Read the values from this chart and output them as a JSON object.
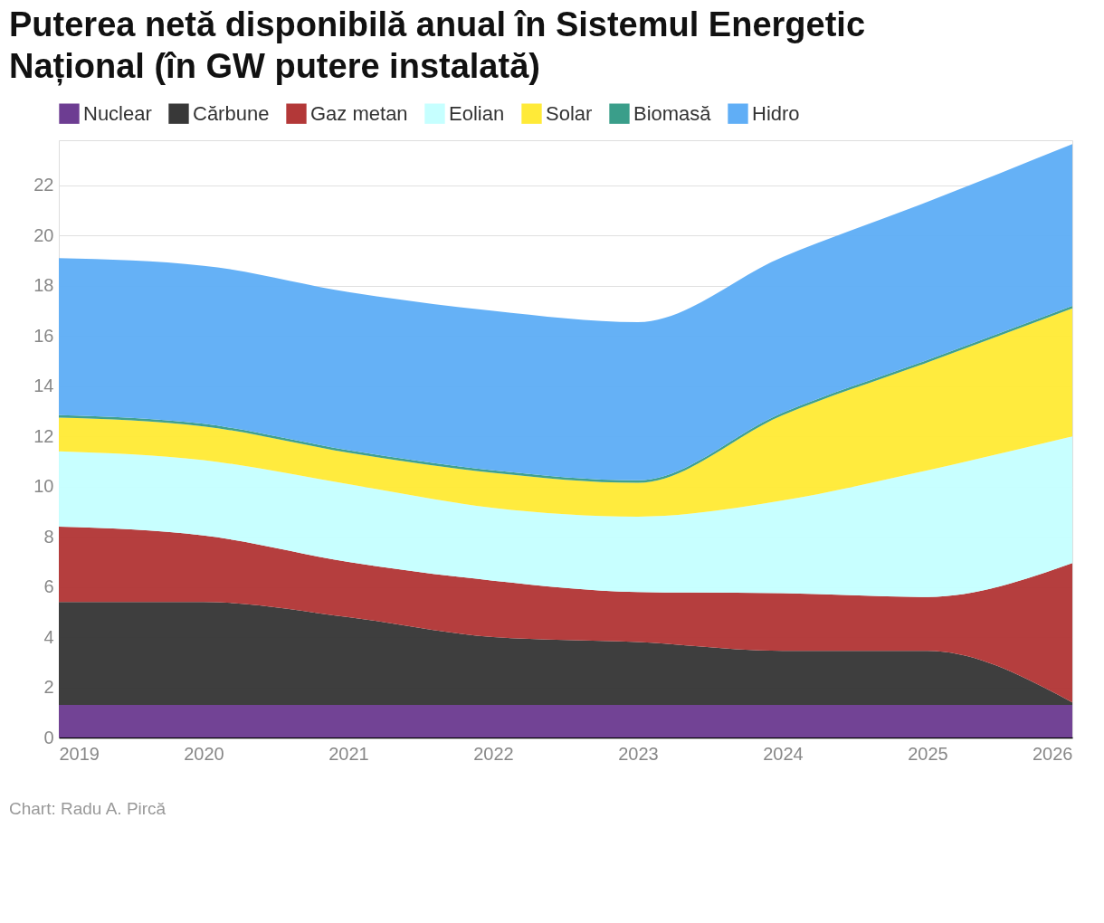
{
  "chart_data": {
    "type": "area",
    "stacked": true,
    "title": "Puterea netă disponibilă anual în Sistemul Energetic Național (în GW putere instalată)",
    "x": [
      2019,
      2020,
      2021,
      2022,
      2023,
      2024,
      2025,
      2026
    ],
    "series": [
      {
        "name": "Nuclear",
        "color": "#6d3d92",
        "values": [
          1.3,
          1.3,
          1.3,
          1.3,
          1.3,
          1.3,
          1.3,
          1.3
        ]
      },
      {
        "name": "Cărbune",
        "color": "#383838",
        "values": [
          4.1,
          4.1,
          3.5,
          2.7,
          2.5,
          2.15,
          2.15,
          0.1
        ]
      },
      {
        "name": "Gaz metan",
        "color": "#b33838",
        "values": [
          3.0,
          2.65,
          2.2,
          2.25,
          2.0,
          2.3,
          2.15,
          5.55
        ]
      },
      {
        "name": "Eolian",
        "color": "#c6ffff",
        "values": [
          3.0,
          3.0,
          3.1,
          2.9,
          3.0,
          3.7,
          5.05,
          5.05
        ]
      },
      {
        "name": "Solar",
        "color": "#ffea38",
        "values": [
          1.35,
          1.35,
          1.25,
          1.4,
          1.35,
          3.4,
          4.3,
          5.1
        ]
      },
      {
        "name": "Biomasă",
        "color": "#3a9e8a",
        "values": [
          0.1,
          0.1,
          0.1,
          0.1,
          0.1,
          0.1,
          0.1,
          0.1
        ]
      },
      {
        "name": "Hidro",
        "color": "#60aef6",
        "values": [
          6.25,
          6.3,
          6.3,
          6.35,
          6.3,
          6.2,
          6.3,
          6.45
        ]
      }
    ],
    "xlim": [
      2019,
      2026
    ],
    "xticks": [
      2019,
      2020,
      2021,
      2022,
      2023,
      2024,
      2025,
      2026
    ],
    "ylim": [
      0,
      23.8
    ],
    "yticks": [
      0,
      2,
      4,
      6,
      8,
      10,
      12,
      14,
      16,
      18,
      20,
      22
    ],
    "grid": "y",
    "legend": "top",
    "annotations": [
      "Chart: Radu A. Pircă"
    ]
  }
}
